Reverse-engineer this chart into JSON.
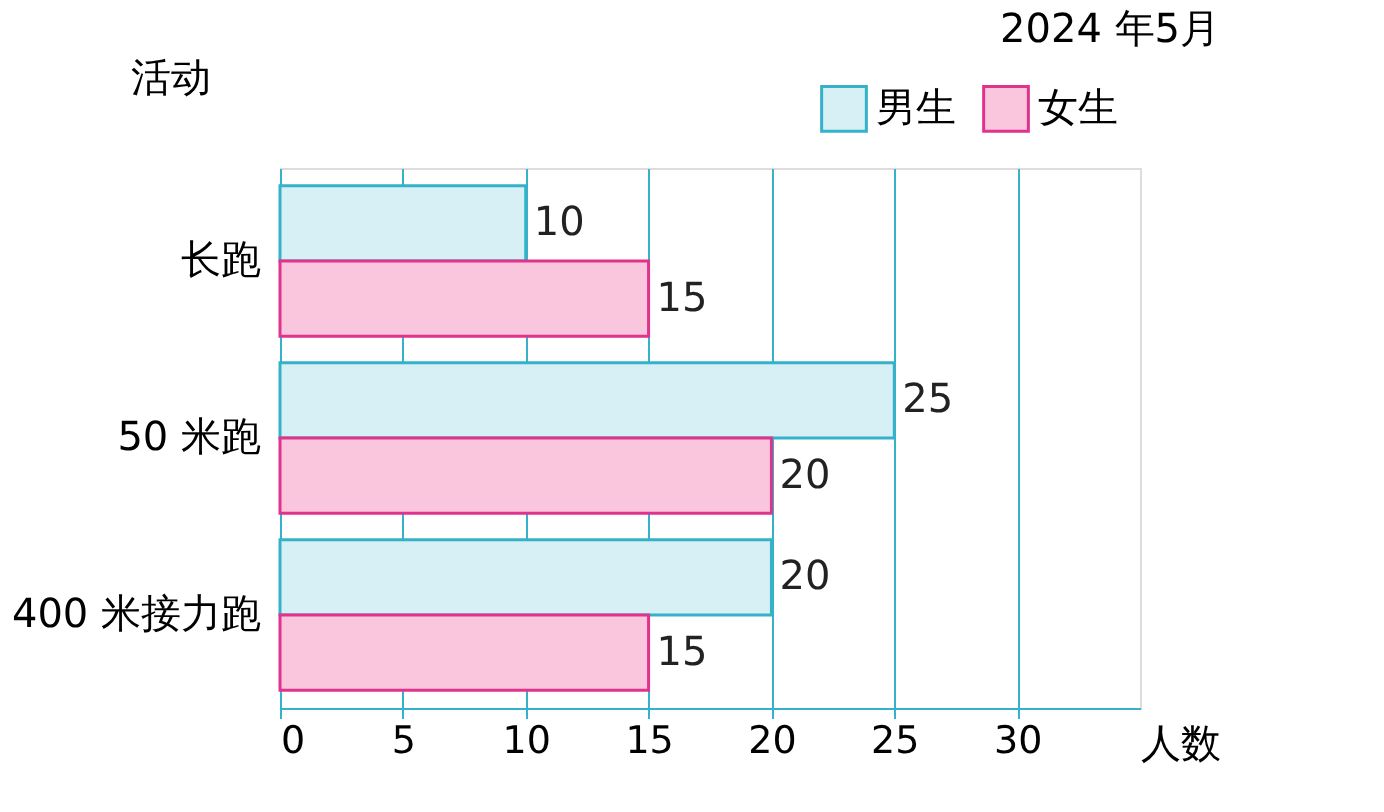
{
  "chart_data": {
    "type": "bar",
    "orientation": "horizontal",
    "title": "2024 年5月",
    "ylabel": "活动",
    "xlabel": "人数",
    "categories": [
      "长跑",
      "50 米跑",
      "400 米接力跑"
    ],
    "series": [
      {
        "name": "男生",
        "color": "#d6f0f5",
        "values": [
          10,
          25,
          20
        ]
      },
      {
        "name": "女生",
        "color": "#f9c6de",
        "values": [
          15,
          20,
          15
        ]
      }
    ],
    "xlim": [
      0,
      35
    ],
    "xticks": [
      0,
      5,
      10,
      15,
      20,
      25,
      30
    ],
    "grid": "x",
    "legend": "top right",
    "data_labels": true
  }
}
